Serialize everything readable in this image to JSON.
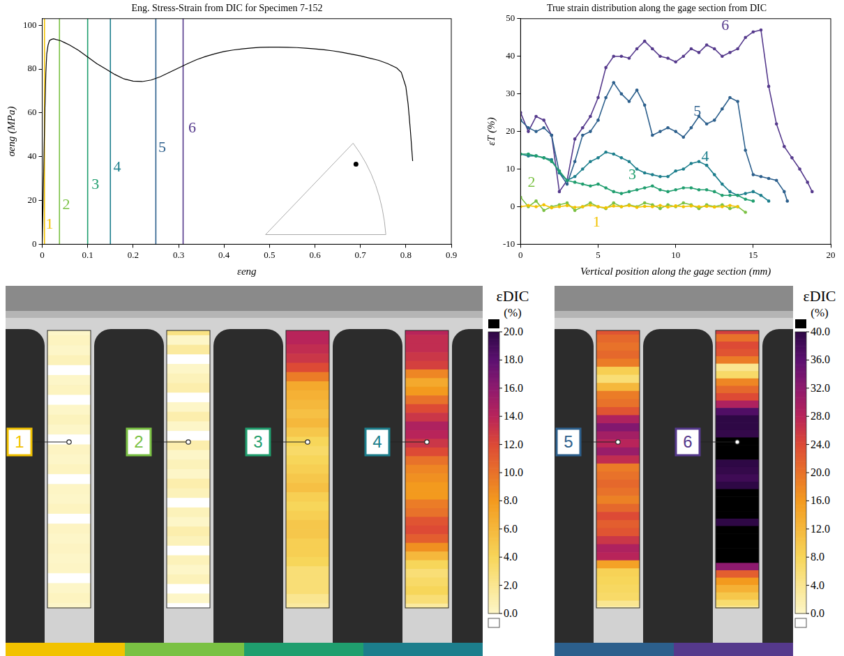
{
  "chart_data": [
    {
      "type": "line",
      "title": "Eng. Stress-Strain from DIC for Specimen 7-152",
      "x_label": "εeng",
      "y_label": "σeng (MPa)",
      "color": "#000000",
      "x": [
        0,
        0.002,
        0.004,
        0.006,
        0.008,
        0.01,
        0.013,
        0.016,
        0.02,
        0.025,
        0.03,
        0.04,
        0.05,
        0.06,
        0.08,
        0.1,
        0.12,
        0.14,
        0.16,
        0.18,
        0.2,
        0.22,
        0.24,
        0.26,
        0.28,
        0.3,
        0.32,
        0.34,
        0.36,
        0.38,
        0.4,
        0.42,
        0.44,
        0.46,
        0.48,
        0.5,
        0.52,
        0.54,
        0.56,
        0.58,
        0.6,
        0.62,
        0.64,
        0.66,
        0.68,
        0.7,
        0.72,
        0.74,
        0.76,
        0.78,
        0.79,
        0.8,
        0.805,
        0.81,
        0.815
      ],
      "values": [
        0,
        20,
        42,
        62,
        78,
        87,
        91,
        93,
        93.5,
        93.8,
        93.5,
        93,
        92,
        91,
        88.5,
        85.5,
        82.5,
        80,
        77.5,
        75.5,
        74.5,
        74.3,
        75,
        76.5,
        78.5,
        80.5,
        82.5,
        84.3,
        85.8,
        87,
        88,
        88.7,
        89.2,
        89.6,
        89.9,
        90,
        90,
        89.9,
        89.8,
        89.5,
        89.2,
        88.8,
        88.3,
        87.6,
        86.8,
        86,
        85,
        84,
        82.5,
        80.5,
        78.5,
        72,
        64,
        52,
        38
      ],
      "vlines": [
        {
          "name": "1",
          "x": 0.005,
          "color": "#f2c200",
          "label_x": 0.016,
          "label_y": 9
        },
        {
          "name": "2",
          "x": 0.038,
          "color": "#7ac143",
          "label_x": 0.053,
          "label_y": 18
        },
        {
          "name": "3",
          "x": 0.1,
          "color": "#1f9e6e",
          "label_x": 0.117,
          "label_y": 27
        },
        {
          "name": "4",
          "x": 0.15,
          "color": "#1c7e8c",
          "label_x": 0.165,
          "label_y": 35
        },
        {
          "name": "5",
          "x": 0.25,
          "color": "#2c5f8c",
          "label_x": 0.264,
          "label_y": 44
        },
        {
          "name": "6",
          "x": 0.31,
          "color": "#55398c",
          "label_x": 0.33,
          "label_y": 53
        }
      ],
      "xlim": [
        0,
        0.9
      ],
      "xticks": [
        0,
        0.1,
        0.2,
        0.3,
        0.4,
        0.5,
        0.6,
        0.7,
        0.8,
        0.9
      ],
      "ylim": [
        0,
        103
      ],
      "yticks": [
        0,
        20,
        40,
        60,
        80,
        100
      ],
      "grid": false
    },
    {
      "type": "line",
      "title": "True strain distribution along the gage section from DIC",
      "x_label": "Vertical position along the gage section (mm)",
      "y_label": "εT (%)",
      "series": [
        {
          "name": "1",
          "color": "#f2c200",
          "marker": "circle",
          "line_style": "solid",
          "label_x": 4.9,
          "label_y": -4.2,
          "x": [
            0,
            0.5,
            1,
            1.5,
            2,
            2.5,
            3,
            3.5,
            4,
            4.5,
            5,
            5.5,
            6,
            6.5,
            7,
            7.5,
            8,
            8.5,
            9,
            9.5,
            10,
            10.5,
            11,
            11.5,
            12,
            12.5,
            13,
            13.5,
            14
          ],
          "values": [
            0,
            0.3,
            0,
            0.5,
            -0.3,
            0,
            0.3,
            -0.2,
            0,
            0.4,
            0,
            -0.3,
            0.2,
            0,
            0.3,
            -0.2,
            0.1,
            0,
            0.3,
            -0.1,
            0.2,
            0,
            0.2,
            0,
            0.1,
            -0.1,
            0,
            0.3,
            0
          ]
        },
        {
          "name": "2",
          "color": "#7ac143",
          "marker": "circle",
          "line_style": "solid",
          "label_x": 0.7,
          "label_y": 6.3,
          "x": [
            0,
            0.5,
            1,
            1.5,
            2,
            2.5,
            3,
            3.5,
            4,
            4.5,
            5,
            5.5,
            6,
            6.5,
            7,
            7.5,
            8,
            8.5,
            9,
            9.5,
            10,
            10.5,
            11,
            11.5,
            12,
            12.5,
            13,
            13.5,
            14,
            14.5
          ],
          "values": [
            2.5,
            0,
            1.5,
            -1,
            0,
            0.5,
            1,
            -1,
            0,
            1,
            0,
            -0.5,
            1,
            0,
            0.5,
            0,
            1,
            0.5,
            -0.5,
            0.5,
            0,
            1,
            0.5,
            -0.5,
            0.5,
            0,
            0.5,
            -0.5,
            0,
            -1.5
          ]
        },
        {
          "name": "3",
          "color": "#1f9e6e",
          "marker": "circle",
          "line_style": "solid",
          "label_x": 7.2,
          "label_y": 8.4,
          "x": [
            0,
            0.5,
            1,
            1.5,
            2,
            2.5,
            3,
            3.5,
            4,
            4.5,
            5,
            5.5,
            6,
            6.5,
            7,
            7.5,
            8,
            8.5,
            9,
            9.5,
            10,
            10.5,
            11,
            11.5,
            12,
            12.5,
            13,
            13.5,
            14,
            14.5,
            15
          ],
          "values": [
            14,
            14,
            13.5,
            13,
            12,
            9.5,
            7,
            6.5,
            6,
            5.5,
            6,
            5,
            4,
            3.5,
            4,
            4.5,
            5,
            5.5,
            4.5,
            4,
            4.5,
            5,
            5,
            4.5,
            4.5,
            4,
            3,
            3,
            3,
            2,
            1.5
          ]
        },
        {
          "name": "4",
          "color": "#1c7e8c",
          "marker": "circle",
          "line_style": "solid",
          "label_x": 11.9,
          "label_y": 13.3,
          "x": [
            0,
            0.5,
            1,
            1.5,
            2,
            2.5,
            3,
            3.5,
            4,
            4.5,
            5,
            5.5,
            6,
            6.5,
            7,
            7.5,
            8,
            8.5,
            9,
            9.5,
            10,
            10.5,
            11,
            11.5,
            12,
            12.5,
            13,
            13.5,
            14,
            14.5,
            15,
            15.5,
            16
          ],
          "values": [
            14,
            13.5,
            13.5,
            13,
            12.5,
            9,
            7,
            8,
            10,
            12,
            13,
            14.5,
            14,
            13,
            12,
            10,
            9,
            8.5,
            8,
            8,
            9.5,
            10,
            11.5,
            12,
            11,
            8.5,
            6,
            4,
            3,
            3.5,
            4,
            3,
            1.5
          ]
        },
        {
          "name": "5",
          "color": "#2c5f8c",
          "marker": "circle",
          "line_style": "solid",
          "label_x": 11.4,
          "label_y": 25.3,
          "x": [
            0,
            0.5,
            1,
            1.5,
            2,
            2.5,
            3,
            3.5,
            4,
            4.5,
            5,
            5.5,
            6,
            6.5,
            7,
            7.5,
            8,
            8.5,
            9,
            9.5,
            10,
            10.5,
            11,
            11.5,
            12,
            12.5,
            13,
            13.5,
            14,
            14.5,
            15,
            15.5,
            16,
            16.5,
            17,
            17.2
          ],
          "values": [
            23,
            21,
            20,
            21,
            19,
            9,
            6,
            12,
            19,
            20,
            23,
            29,
            33,
            30,
            28,
            31,
            27,
            19,
            20,
            21,
            20,
            18.5,
            21,
            24,
            22,
            23,
            26,
            29,
            28,
            15,
            8.5,
            8,
            7.5,
            7,
            4,
            1.5
          ]
        },
        {
          "name": "6",
          "color": "#55398c",
          "marker": "circle",
          "line_style": "solid",
          "label_x": 13.2,
          "label_y": 48,
          "x": [
            0,
            0.5,
            1,
            1.5,
            2,
            2.5,
            3,
            3.5,
            4,
            4.5,
            5,
            5.5,
            6,
            6.5,
            7,
            7.5,
            8,
            8.5,
            9,
            9.5,
            10,
            10.5,
            11,
            11.5,
            12,
            12.5,
            13,
            13.5,
            14,
            14.5,
            15,
            15.5,
            16,
            16.5,
            17,
            17.5,
            18,
            18.5,
            18.8
          ],
          "values": [
            25,
            20,
            24,
            23,
            19,
            4,
            7,
            18,
            21,
            24,
            29,
            37,
            40,
            40,
            39.5,
            42,
            44,
            42,
            40,
            39.5,
            38.5,
            40,
            42,
            41,
            43,
            42,
            40,
            41,
            42,
            45,
            46.5,
            47,
            32,
            22,
            16,
            13,
            10,
            6.5,
            4
          ]
        }
      ],
      "xlim": [
        0,
        20
      ],
      "xticks": [
        0,
        5,
        10,
        15,
        20
      ],
      "ylim": [
        -10,
        50
      ],
      "yticks": [
        -10,
        0,
        10,
        20,
        30,
        40,
        50
      ],
      "grid": false
    }
  ],
  "dic_panels": {
    "colorbars": [
      {
        "title": "εDIC",
        "unit": "(%)",
        "range": [
          0,
          20
        ],
        "panels": [
          "1",
          "2",
          "3",
          "4"
        ],
        "ticks": [
          {
            "value": 0,
            "label": "0.0"
          },
          {
            "value": 2,
            "label": "2.0"
          },
          {
            "value": 4,
            "label": "4.0"
          },
          {
            "value": 6,
            "label": "6.0"
          },
          {
            "value": 8,
            "label": "8.0"
          },
          {
            "value": 10,
            "label": "10.0"
          },
          {
            "value": 12,
            "label": "12.0"
          },
          {
            "value": 14,
            "label": "14.0"
          },
          {
            "value": 16,
            "label": "16.0"
          },
          {
            "value": 18,
            "label": "18.0"
          },
          {
            "value": 20,
            "label": "20.0"
          }
        ]
      },
      {
        "title": "εDIC",
        "unit": "(%)",
        "range": [
          0,
          40
        ],
        "panels": [
          "5",
          "6"
        ],
        "ticks": [
          {
            "value": 0,
            "label": "0.0"
          },
          {
            "value": 4,
            "label": "4.0"
          },
          {
            "value": 8,
            "label": "8.0"
          },
          {
            "value": 12,
            "label": "12.0"
          },
          {
            "value": 16,
            "label": "16.0"
          },
          {
            "value": 20,
            "label": "20.0"
          },
          {
            "value": 24,
            "label": "24.0"
          },
          {
            "value": 28,
            "label": "28.0"
          },
          {
            "value": 32,
            "label": "32.0"
          },
          {
            "value": 36,
            "label": "36.0"
          },
          {
            "value": 40,
            "label": "40.0"
          }
        ]
      }
    ]
  }
}
